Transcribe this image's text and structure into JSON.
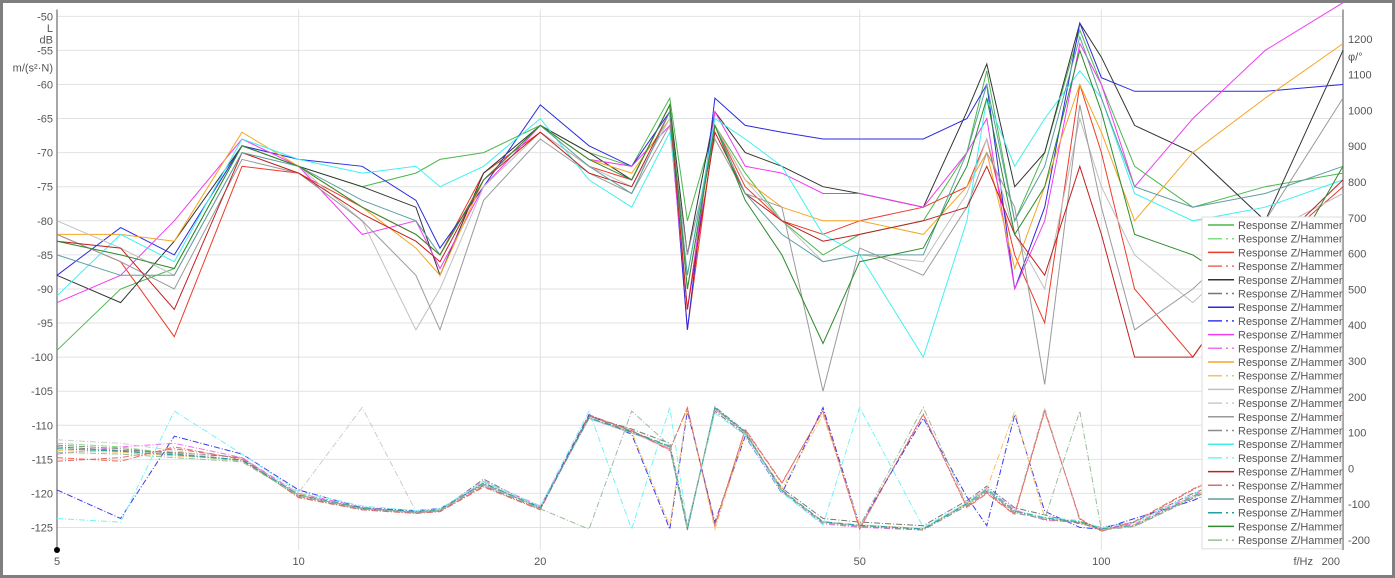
{
  "chart_data": {
    "type": "line",
    "x_scale": "log",
    "xlim": [
      5,
      200
    ],
    "ylim_left": [
      -128.3,
      -49
    ],
    "ylim_right": [
      -228,
      1282
    ],
    "grid": true,
    "legend_placement": "right-bottom",
    "xlabel": "f/Hz",
    "ylabel_left": [
      "L",
      "dB",
      "m/(s²·N)"
    ],
    "ylabel_right": "φ/°",
    "x_ticks": [
      5,
      10,
      20,
      50,
      100,
      200
    ],
    "y_ticks_left": [
      -50,
      -55,
      -60,
      -65,
      -70,
      -75,
      -80,
      -85,
      -90,
      -95,
      -100,
      -105,
      -110,
      -115,
      -120,
      -125
    ],
    "y_ticks_right": [
      1200,
      1100,
      1000,
      900,
      800,
      700,
      600,
      500,
      400,
      300,
      200,
      100,
      0,
      -100,
      -200
    ],
    "x": [
      5,
      6,
      7,
      8.5,
      10,
      12,
      14,
      15,
      17,
      20,
      23,
      26,
      29,
      30.5,
      33,
      36,
      40,
      45,
      50,
      60,
      68,
      72,
      78,
      85,
      94,
      100,
      110,
      130,
      160,
      200
    ],
    "series": [
      {
        "name": "Response Z/Hammer",
        "axis": "left",
        "style": "solid",
        "color": "#4cb84c",
        "values": [
          -99,
          -90,
          -87,
          -69,
          -72,
          -75,
          -73,
          -71,
          -70,
          -66,
          -70,
          -72,
          -62,
          -80,
          -66,
          -73,
          -80,
          -85,
          -82,
          -80,
          -70,
          -58,
          -80,
          -70,
          -52,
          -60,
          -72,
          -78,
          -75,
          -73
        ]
      },
      {
        "name": "Response Z/Hammer",
        "axis": "right",
        "style": "dashed",
        "color": "#7ee07e",
        "values": [
          70,
          60,
          40,
          20,
          -70,
          -110,
          -120,
          -115,
          -40,
          -110,
          140,
          100,
          60,
          -170,
          170,
          100,
          -60,
          -150,
          -160,
          -170,
          -100,
          -60,
          -120,
          -140,
          -150,
          -170,
          -160,
          -80,
          20,
          160
        ]
      },
      {
        "name": "Response Z/Hammer",
        "axis": "left",
        "style": "solid",
        "color": "#ee3a2a",
        "values": [
          -82,
          -86,
          -97,
          -72,
          -73,
          -78,
          -82,
          -85,
          -73,
          -67,
          -72,
          -74,
          -63,
          -96,
          -66,
          -75,
          -80,
          -82,
          -80,
          -78,
          -75,
          -68,
          -85,
          -95,
          -60,
          -70,
          -90,
          -100,
          -85,
          -75
        ]
      },
      {
        "name": "Response Z/Hammer",
        "axis": "right",
        "style": "dashed",
        "color": "#f06a5a",
        "values": [
          30,
          20,
          60,
          25,
          -80,
          -115,
          -125,
          -120,
          -50,
          -115,
          150,
          105,
          50,
          170,
          -160,
          110,
          -40,
          160,
          -170,
          150,
          -110,
          -70,
          -130,
          160,
          -140,
          -175,
          -150,
          -60,
          40,
          150
        ]
      },
      {
        "name": "Response Z/Hammer",
        "axis": "left",
        "style": "solid",
        "color": "#333333",
        "values": [
          -88,
          -92,
          -83,
          -69,
          -72,
          -75,
          -78,
          -88,
          -73,
          -66,
          -70,
          -74,
          -63,
          -85,
          -64,
          -70,
          -72,
          -75,
          -76,
          -78,
          -64,
          -57,
          -75,
          -70,
          -51,
          -56,
          -66,
          -70,
          -80,
          -55
        ]
      },
      {
        "name": "Response Z/Hammer",
        "axis": "right",
        "style": "dashed",
        "color": "#777777",
        "values": [
          60,
          50,
          45,
          30,
          -75,
          -112,
          -122,
          -118,
          -30,
          -112,
          145,
          110,
          70,
          -160,
          160,
          95,
          -55,
          -140,
          -150,
          -160,
          -90,
          -50,
          -110,
          -130,
          -155,
          -165,
          -150,
          -70,
          10,
          150
        ]
      },
      {
        "name": "Response Z/Hammer",
        "axis": "left",
        "style": "solid",
        "color": "#2a2ae0",
        "values": [
          -88,
          -81,
          -85,
          -69,
          -71,
          -72,
          -77,
          -84,
          -75,
          -63,
          -69,
          -72,
          -64,
          -96,
          -62,
          -66,
          -67,
          -68,
          -68,
          -68,
          -65,
          -60,
          -90,
          -78,
          -51,
          -59,
          -61,
          -61,
          -61,
          -60
        ]
      },
      {
        "name": "Response Z/Hammer",
        "axis": "right",
        "style": "dashed",
        "color": "#3a3af0",
        "values": [
          -60,
          -140,
          90,
          40,
          -60,
          -110,
          -118,
          -112,
          -45,
          -108,
          150,
          95,
          -170,
          160,
          -150,
          90,
          -70,
          170,
          -160,
          140,
          -80,
          -160,
          150,
          -120,
          -165,
          -170,
          -140,
          -90,
          0,
          170
        ]
      },
      {
        "name": "Response Z/Hammer",
        "axis": "left",
        "style": "solid",
        "color": "#f03cf0",
        "values": [
          -92,
          -88,
          -80,
          -68,
          -72,
          -82,
          -80,
          -87,
          -75,
          -66,
          -71,
          -72,
          -66,
          -93,
          -64,
          -72,
          -73,
          -76,
          -76,
          -78,
          -70,
          -65,
          -90,
          -80,
          -54,
          -60,
          -75,
          -65,
          -55,
          -48
        ]
      },
      {
        "name": "Response Z/Hammer",
        "axis": "right",
        "style": "dashed",
        "color": "#f070f0",
        "values": [
          40,
          60,
          70,
          30,
          -70,
          -108,
          -125,
          -120,
          -35,
          -105,
          140,
          100,
          55,
          -165,
          165,
          100,
          -65,
          -155,
          -165,
          -172,
          -95,
          -55,
          -115,
          -145,
          -150,
          -168,
          -155,
          -75,
          25,
          165
        ]
      },
      {
        "name": "Response Z/Hammer",
        "axis": "left",
        "style": "solid",
        "color": "#f5a623",
        "values": [
          -82,
          -82,
          -83,
          -67,
          -72,
          -78,
          -84,
          -88,
          -74,
          -66,
          -71,
          -73,
          -65,
          -90,
          -66,
          -74,
          -78,
          -80,
          -80,
          -82,
          -75,
          -70,
          -87,
          -75,
          -60,
          -67,
          -80,
          -70,
          -62,
          -54
        ]
      },
      {
        "name": "Response Z/Hammer",
        "axis": "right",
        "style": "dashed",
        "color": "#f8c060",
        "values": [
          50,
          45,
          35,
          25,
          -72,
          -112,
          -122,
          -117,
          -42,
          -112,
          142,
          102,
          -160,
          170,
          -170,
          98,
          -58,
          150,
          -158,
          -168,
          -98,
          -58,
          160,
          -138,
          -152,
          -172,
          -158,
          -78,
          18,
          158
        ]
      },
      {
        "name": "Response Z/Hammer",
        "axis": "left",
        "style": "solid",
        "color": "#c0c0c0",
        "values": [
          -80,
          -84,
          -88,
          -70,
          -72,
          -80,
          -96,
          -90,
          -75,
          -67,
          -72,
          -75,
          -65,
          -90,
          -66,
          -74,
          -80,
          -86,
          -85,
          -86,
          -76,
          -68,
          -82,
          -90,
          -65,
          -75,
          -85,
          -92,
          -82,
          -76
        ]
      },
      {
        "name": "Response Z/Hammer",
        "axis": "right",
        "style": "dashed",
        "color": "#cccccc",
        "values": [
          80,
          70,
          50,
          20,
          -68,
          170,
          -120,
          -115,
          -38,
          -110,
          138,
          98,
          58,
          -168,
          168,
          102,
          -62,
          -148,
          -158,
          -168,
          -102,
          -62,
          -122,
          170,
          -148,
          -168,
          -162,
          -82,
          22,
          162
        ]
      },
      {
        "name": "Response Z/Hammer",
        "axis": "left",
        "style": "solid",
        "color": "#9a9a9a",
        "values": [
          -82,
          -86,
          -90,
          -71,
          -73,
          -80,
          -88,
          -96,
          -77,
          -68,
          -73,
          -76,
          -66,
          -85,
          -68,
          -76,
          -78,
          -105,
          -84,
          -88,
          -78,
          -70,
          -78,
          -104,
          -63,
          -78,
          -96,
          -90,
          -80,
          -62
        ]
      },
      {
        "name": "Response Z/Hammer",
        "axis": "right",
        "style": "dashed",
        "color": "#8c8c8c",
        "values": [
          65,
          55,
          42,
          22,
          -78,
          -114,
          -124,
          -119,
          -48,
          -114,
          146,
          104,
          62,
          -172,
          172,
          104,
          -64,
          -152,
          -162,
          -172,
          -104,
          -64,
          -124,
          -142,
          -152,
          -172,
          -162,
          -84,
          16,
          156
        ]
      },
      {
        "name": "Response Z/Hammer",
        "axis": "left",
        "style": "solid",
        "color": "#40f0f0",
        "values": [
          -91,
          -82,
          -86,
          -68,
          -71,
          -73,
          -72,
          -75,
          -72,
          -65,
          -74,
          -78,
          -67,
          -88,
          -65,
          -68,
          -72,
          -82,
          -85,
          -100,
          -80,
          -62,
          -72,
          -65,
          -58,
          -62,
          -76,
          -80,
          -78,
          -74
        ]
      },
      {
        "name": "Response Z/Hammer",
        "axis": "right",
        "style": "dashed",
        "color": "#70f5f5",
        "values": [
          -140,
          -150,
          160,
          40,
          -65,
          -105,
          -118,
          -113,
          -36,
          -106,
          160,
          -170,
          170,
          -160,
          155,
          92,
          -68,
          -158,
          170,
          -165,
          -96,
          -56,
          -118,
          -136,
          -146,
          -166,
          -150,
          -72,
          30,
          168
        ]
      },
      {
        "name": "Response Z/Hammer",
        "axis": "left",
        "style": "solid",
        "color": "#c02020",
        "values": [
          -83,
          -84,
          -93,
          -70,
          -73,
          -79,
          -83,
          -86,
          -74,
          -67,
          -73,
          -75,
          -64,
          -93,
          -67,
          -76,
          -80,
          -83,
          -82,
          -80,
          -78,
          -72,
          -82,
          -88,
          -72,
          -82,
          -100,
          -100,
          -85,
          -74
        ]
      },
      {
        "name": "Response Z/Hammer",
        "axis": "right",
        "style": "dashed",
        "color": "#d87070",
        "values": [
          20,
          30,
          55,
          28,
          -82,
          -116,
          -126,
          -121,
          -52,
          -116,
          148,
          106,
          52,
          168,
          -158,
          108,
          -42,
          162,
          -168,
          152,
          -108,
          -68,
          -128,
          162,
          -142,
          -176,
          -148,
          -58,
          42,
          152
        ]
      },
      {
        "name": "Response Z/Hammer",
        "axis": "left",
        "style": "solid",
        "color": "#5f9ea0",
        "values": [
          -85,
          -88,
          -88,
          -70,
          -72,
          -77,
          -80,
          -85,
          -74,
          -66,
          -72,
          -76,
          -64,
          -88,
          -66,
          -76,
          -82,
          -86,
          -85,
          -85,
          -70,
          -60,
          -80,
          -72,
          -53,
          -62,
          -75,
          -78,
          -76,
          -72
        ]
      },
      {
        "name": "Response Z/Hammer",
        "axis": "right",
        "style": "dashed",
        "color": "#20a0a0",
        "values": [
          55,
          48,
          38,
          24,
          -74,
          -111,
          -121,
          -116,
          -41,
          -111,
          141,
          101,
          61,
          -169,
          169,
          101,
          -61,
          -149,
          -159,
          -169,
          -99,
          -59,
          -119,
          -139,
          -149,
          -169,
          -159,
          -79,
          19,
          159
        ]
      },
      {
        "name": "Response Z/Hammer",
        "axis": "left",
        "style": "solid",
        "color": "#2e8b2e",
        "values": [
          -83,
          -85,
          -87,
          -69,
          -72,
          -78,
          -82,
          -85,
          -74,
          -66,
          -71,
          -74,
          -63,
          -90,
          -66,
          -77,
          -85,
          -98,
          -86,
          -84,
          -72,
          -62,
          -82,
          -75,
          -55,
          -64,
          -82,
          -85,
          -92,
          -72
        ]
      },
      {
        "name": "Response Z/Hammer",
        "axis": "right",
        "style": "dashed",
        "color": "#9cbc9c",
        "values": [
          45,
          40,
          30,
          18,
          -76,
          -113,
          -123,
          -118,
          -44,
          -113,
          -170,
          160,
          64,
          -166,
          166,
          99,
          -63,
          -151,
          -161,
          170,
          -101,
          -61,
          -121,
          -141,
          160,
          -171,
          -161,
          -81,
          21,
          161
        ]
      }
    ]
  }
}
